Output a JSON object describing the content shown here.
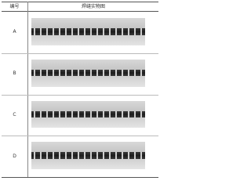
{
  "table": {
    "header": [
      "编号",
      "焊缝实物图"
    ],
    "rows": [
      [
        "A"
      ],
      [
        "B"
      ],
      [
        "C"
      ],
      [
        "D"
      ]
    ]
  }
}
